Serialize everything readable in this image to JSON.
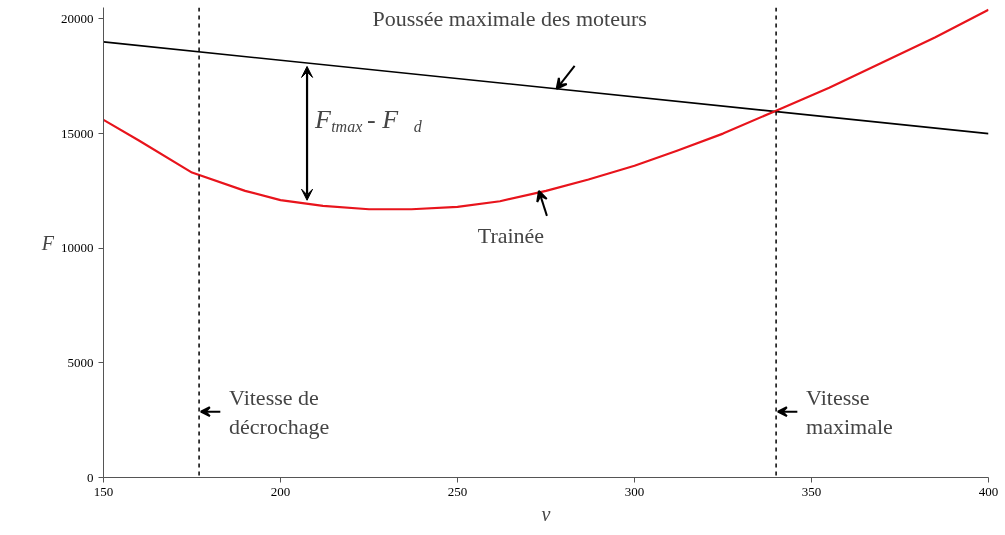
{
  "chart_data": {
    "type": "line",
    "xlabel": "v",
    "ylabel": "F",
    "xlim": [
      150,
      400
    ],
    "ylim": [
      0,
      20500
    ],
    "xticks": [
      150,
      200,
      250,
      300,
      350,
      400
    ],
    "yticks": [
      0,
      5000,
      10000,
      15000,
      20000
    ],
    "grid": false,
    "marker": "none",
    "line_style": "solid",
    "series": [
      {
        "color": "#000000",
        "x": [
          150,
          400
        ],
        "values": [
          19000,
          15000
        ]
      },
      {
        "color": "#e8141c",
        "x": [
          150,
          160,
          175,
          190,
          200,
          212,
          225,
          237,
          250,
          262,
          275,
          287,
          300,
          312,
          325,
          340,
          355,
          370,
          385,
          400
        ],
        "values": [
          15600,
          14700,
          13300,
          12500,
          12100,
          11850,
          11700,
          11700,
          11800,
          12050,
          12500,
          13000,
          13600,
          14250,
          15000,
          16000,
          17000,
          18100,
          19200,
          20400
        ]
      }
    ],
    "ref_lines": [
      {
        "axis": "x",
        "value": 177,
        "label": "Vitesse de\ndécrochage",
        "color": "#000000",
        "line_style": "dashed"
      },
      {
        "axis": "x",
        "value": 340,
        "label": "Vitesse\nmaximale",
        "color": "#000000",
        "line_style": "dashed"
      }
    ],
    "annotations": [
      {
        "text": "Poussée maximale des moteurs",
        "x": 278,
        "y": 16950
      },
      {
        "text": "Trainée",
        "x": 273,
        "y": 12500
      },
      "F$_{tmax}$ - F$_{d}$"
    ]
  }
}
